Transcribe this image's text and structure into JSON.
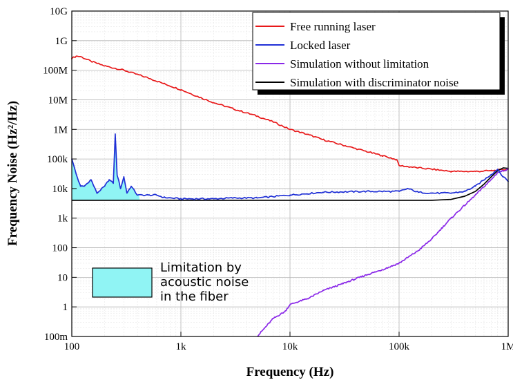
{
  "chart_data": {
    "type": "line",
    "title": "",
    "xlabel": "Frequency (Hz)",
    "ylabel": "Frequency Noise (Hz²/Hz)",
    "x_scale": "log",
    "y_scale": "log",
    "xlim": [
      100,
      1000000
    ],
    "ylim": [
      0.1,
      10000000000
    ],
    "grid": true,
    "legend_position": "top-right",
    "x_ticks": [
      {
        "value": 100,
        "label": "100"
      },
      {
        "value": 1000,
        "label": "1k"
      },
      {
        "value": 10000,
        "label": "10k"
      },
      {
        "value": 100000,
        "label": "100k"
      },
      {
        "value": 1000000,
        "label": "1M"
      }
    ],
    "y_ticks": [
      {
        "value": 0.1,
        "label": "100m"
      },
      {
        "value": 1,
        "label": "1"
      },
      {
        "value": 10,
        "label": "10"
      },
      {
        "value": 100,
        "label": "100"
      },
      {
        "value": 1000,
        "label": "1k"
      },
      {
        "value": 10000,
        "label": "10k"
      },
      {
        "value": 100000,
        "label": "100k"
      },
      {
        "value": 1000000,
        "label": "1M"
      },
      {
        "value": 10000000,
        "label": "10M"
      },
      {
        "value": 100000000,
        "label": "100M"
      },
      {
        "value": 1000000000,
        "label": "1G"
      },
      {
        "value": 10000000000,
        "label": "10G"
      }
    ],
    "series": [
      {
        "name": "Free running laser",
        "color": "#e8191a",
        "points": [
          [
            100,
            250000000
          ],
          [
            110,
            300000000
          ],
          [
            120,
            290000000
          ],
          [
            150,
            200000000
          ],
          [
            200,
            140000000
          ],
          [
            300,
            100000000
          ],
          [
            500,
            55000000
          ],
          [
            700,
            35000000
          ],
          [
            1000,
            22000000
          ],
          [
            1500,
            12000000
          ],
          [
            2000,
            8000000
          ],
          [
            3000,
            5000000
          ],
          [
            5000,
            2800000
          ],
          [
            7000,
            1800000
          ],
          [
            10000,
            1000000
          ],
          [
            15000,
            650000
          ],
          [
            20000,
            450000
          ],
          [
            30000,
            300000
          ],
          [
            50000,
            180000
          ],
          [
            70000,
            130000
          ],
          [
            95000,
            95000
          ],
          [
            100000,
            60000
          ],
          [
            150000,
            50000
          ],
          [
            200000,
            45000
          ],
          [
            300000,
            38000
          ],
          [
            500000,
            38000
          ],
          [
            700000,
            40000
          ],
          [
            1000000,
            45000
          ]
        ]
      },
      {
        "name": "Locked laser",
        "color": "#1f2fd6",
        "points": [
          [
            100,
            100000
          ],
          [
            110,
            30000
          ],
          [
            120,
            12000
          ],
          [
            130,
            12000
          ],
          [
            150,
            20000
          ],
          [
            170,
            7000
          ],
          [
            200,
            12000
          ],
          [
            220,
            20000
          ],
          [
            240,
            15000
          ],
          [
            250,
            700000
          ],
          [
            260,
            30000
          ],
          [
            280,
            10000
          ],
          [
            300,
            25000
          ],
          [
            320,
            7000
          ],
          [
            350,
            12000
          ],
          [
            400,
            6000
          ],
          [
            500,
            6000
          ],
          [
            600,
            6000
          ],
          [
            700,
            5000
          ],
          [
            1000,
            4500
          ],
          [
            2000,
            4500
          ],
          [
            3000,
            4800
          ],
          [
            5000,
            4800
          ],
          [
            10000,
            6000
          ],
          [
            20000,
            7500
          ],
          [
            50000,
            8000
          ],
          [
            100000,
            8000
          ],
          [
            120000,
            10000
          ],
          [
            150000,
            7500
          ],
          [
            200000,
            7000
          ],
          [
            300000,
            7000
          ],
          [
            400000,
            8000
          ],
          [
            500000,
            12000
          ],
          [
            700000,
            30000
          ],
          [
            800000,
            45000
          ],
          [
            900000,
            25000
          ],
          [
            1000000,
            18000
          ]
        ]
      },
      {
        "name": "Simulation without limitation",
        "color": "#8a28e8",
        "points": [
          [
            5000,
            0.1
          ],
          [
            7000,
            0.4
          ],
          [
            9000,
            0.7
          ],
          [
            10000,
            1.2
          ],
          [
            15000,
            2
          ],
          [
            20000,
            3.5
          ],
          [
            30000,
            6
          ],
          [
            50000,
            12
          ],
          [
            70000,
            18
          ],
          [
            100000,
            30
          ],
          [
            150000,
            80
          ],
          [
            200000,
            200
          ],
          [
            300000,
            1000
          ],
          [
            500000,
            6000
          ],
          [
            700000,
            20000
          ],
          [
            800000,
            35000
          ],
          [
            1000000,
            45000
          ]
        ]
      },
      {
        "name": "Simulation with discriminator noise",
        "color": "#000000",
        "points": [
          [
            100,
            4000
          ],
          [
            1000,
            4000
          ],
          [
            10000,
            4000
          ],
          [
            100000,
            4000
          ],
          [
            200000,
            4000
          ],
          [
            300000,
            4300
          ],
          [
            400000,
            5500
          ],
          [
            500000,
            8000
          ],
          [
            600000,
            14000
          ],
          [
            700000,
            25000
          ],
          [
            800000,
            40000
          ],
          [
            900000,
            50000
          ],
          [
            1000000,
            48000
          ]
        ]
      }
    ],
    "annotation": {
      "lines": [
        "Limitation by",
        "acoustic noise",
        "in the fiber"
      ],
      "fill_color": "#90f4f4",
      "shaded_region_x": [
        100,
        420
      ]
    }
  }
}
